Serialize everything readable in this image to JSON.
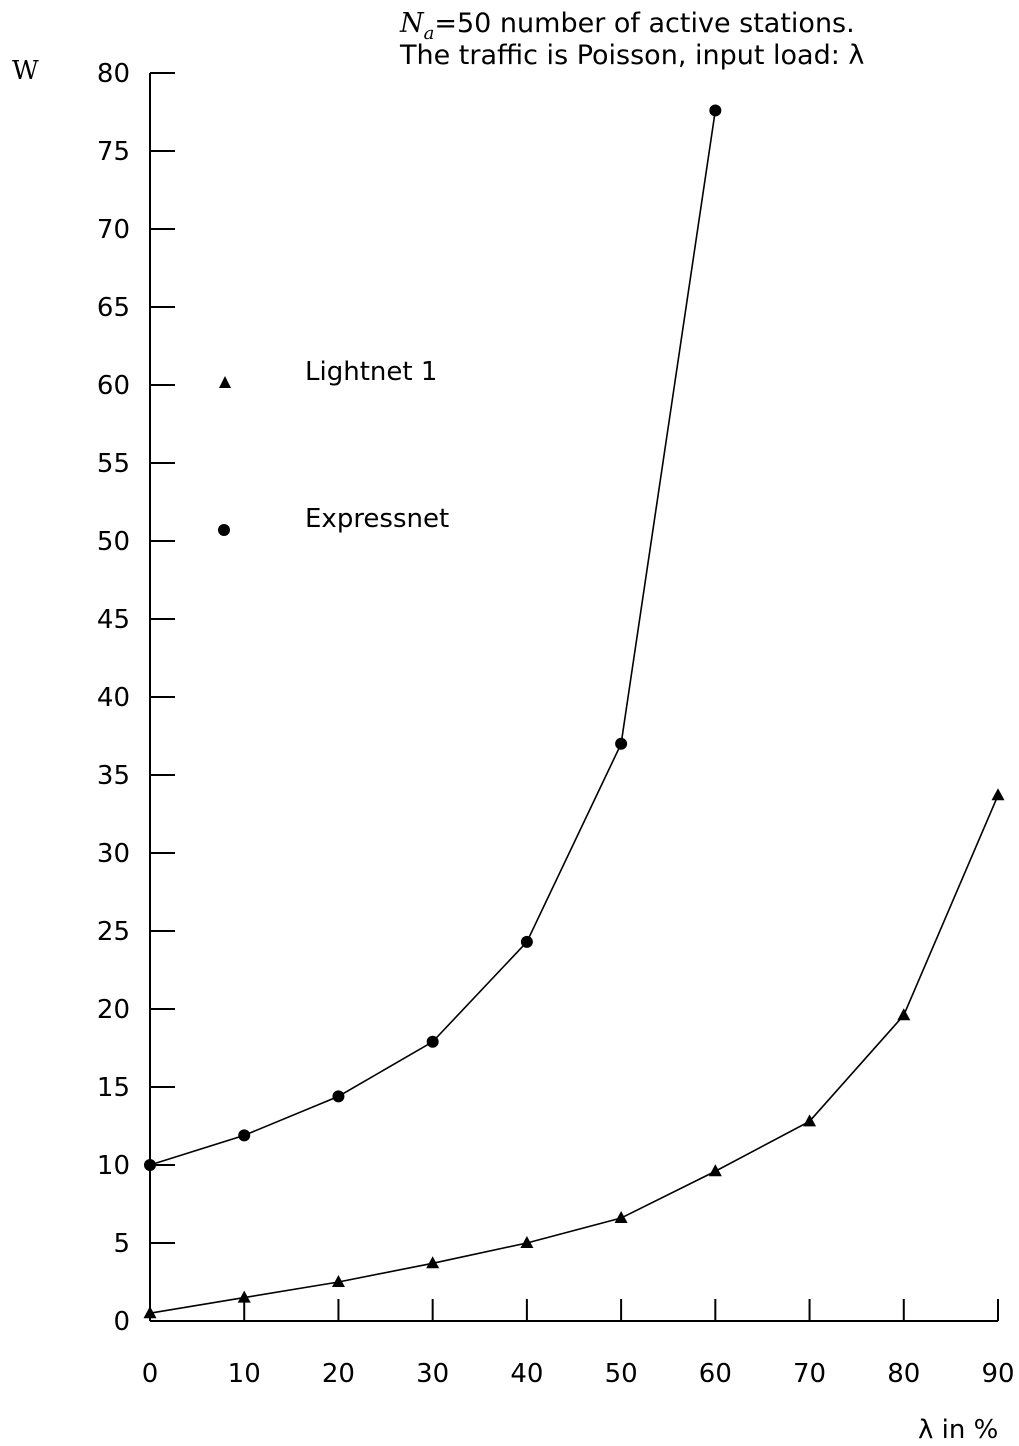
{
  "header": {
    "line1_var": "N",
    "line1_sub": "a",
    "line1_rest": "=50  number of active stations.",
    "line2": "The traffic is Poisson, input load: λ"
  },
  "chart_data": {
    "type": "line",
    "ylabel": "W",
    "xlabel": "λ in %",
    "xlim": [
      0,
      90
    ],
    "ylim": [
      0,
      80
    ],
    "xticks": [
      "0",
      "10",
      "20",
      "30",
      "40",
      "50",
      "60",
      "70",
      "80",
      "90"
    ],
    "yticks": [
      "0",
      "5",
      "10",
      "15",
      "20",
      "25",
      "30",
      "35",
      "40",
      "45",
      "50",
      "55",
      "60",
      "65",
      "70",
      "75",
      "80"
    ],
    "grid": false,
    "legend_position": "upper-left",
    "series": [
      {
        "name": "Lightnet 1",
        "marker": "triangle",
        "x": [
          0,
          10,
          20,
          30,
          40,
          50,
          60,
          70,
          80,
          90
        ],
        "y": [
          0.5,
          1.5,
          2.5,
          3.7,
          5.0,
          6.6,
          9.6,
          12.8,
          19.6,
          33.7
        ]
      },
      {
        "name": "Expressnet",
        "marker": "circle",
        "x": [
          0,
          10,
          20,
          30,
          40,
          50,
          60
        ],
        "y": [
          10.0,
          11.9,
          14.4,
          17.9,
          24.3,
          37.0,
          77.6
        ]
      }
    ]
  }
}
